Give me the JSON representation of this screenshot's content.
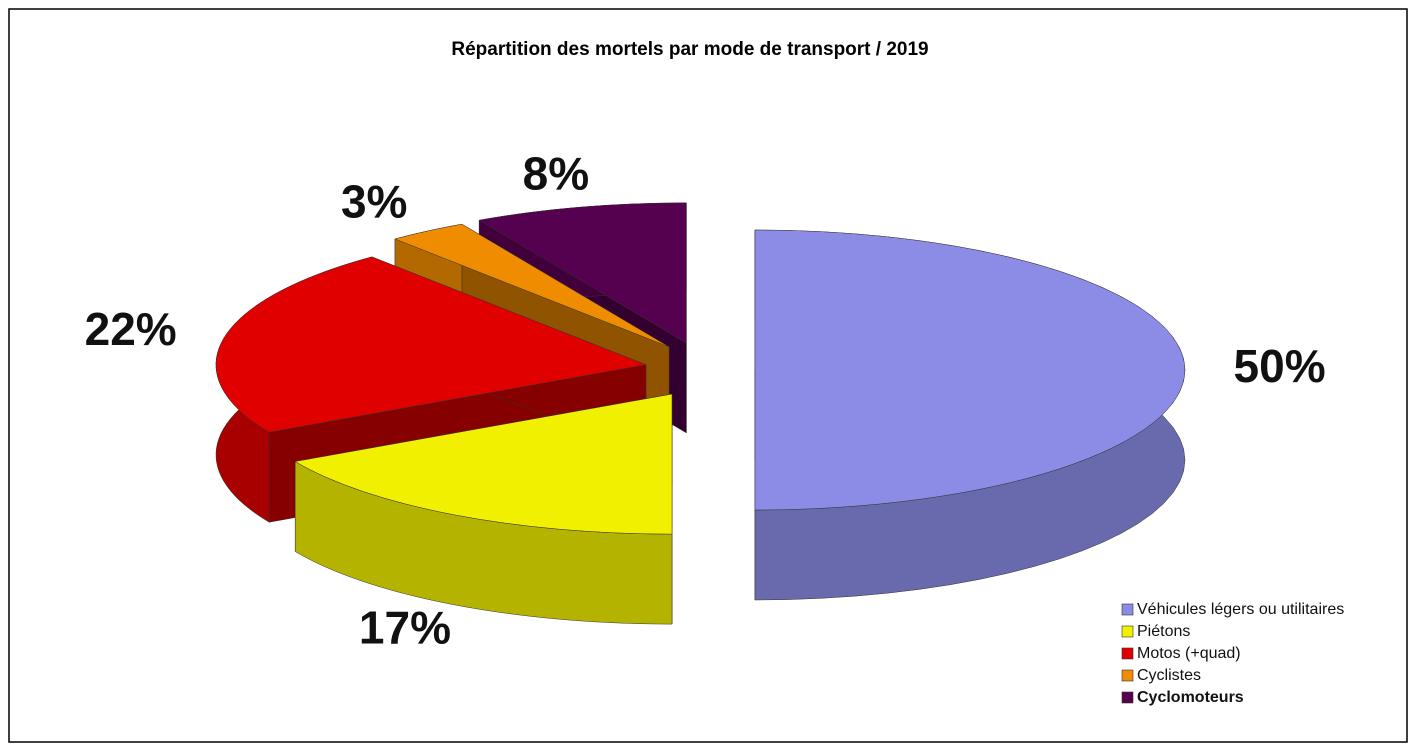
{
  "chart_data": {
    "type": "pie3d",
    "title": "Répartition des mortels par mode de transport / 2019",
    "categories": [
      "Véhicules légers ou utilitaires",
      "Piétons",
      "Motos (+quad)",
      "Cyclistes",
      "Cyclomoteurs"
    ],
    "values": [
      50,
      17,
      22,
      3,
      8
    ],
    "value_labels": [
      "50%",
      "17%",
      "22%",
      "3%",
      "8%"
    ],
    "colors": [
      "#8c8ce6",
      "#f0f000",
      "#e00000",
      "#f08c00",
      "#560050"
    ],
    "legend": "bottom-right"
  }
}
